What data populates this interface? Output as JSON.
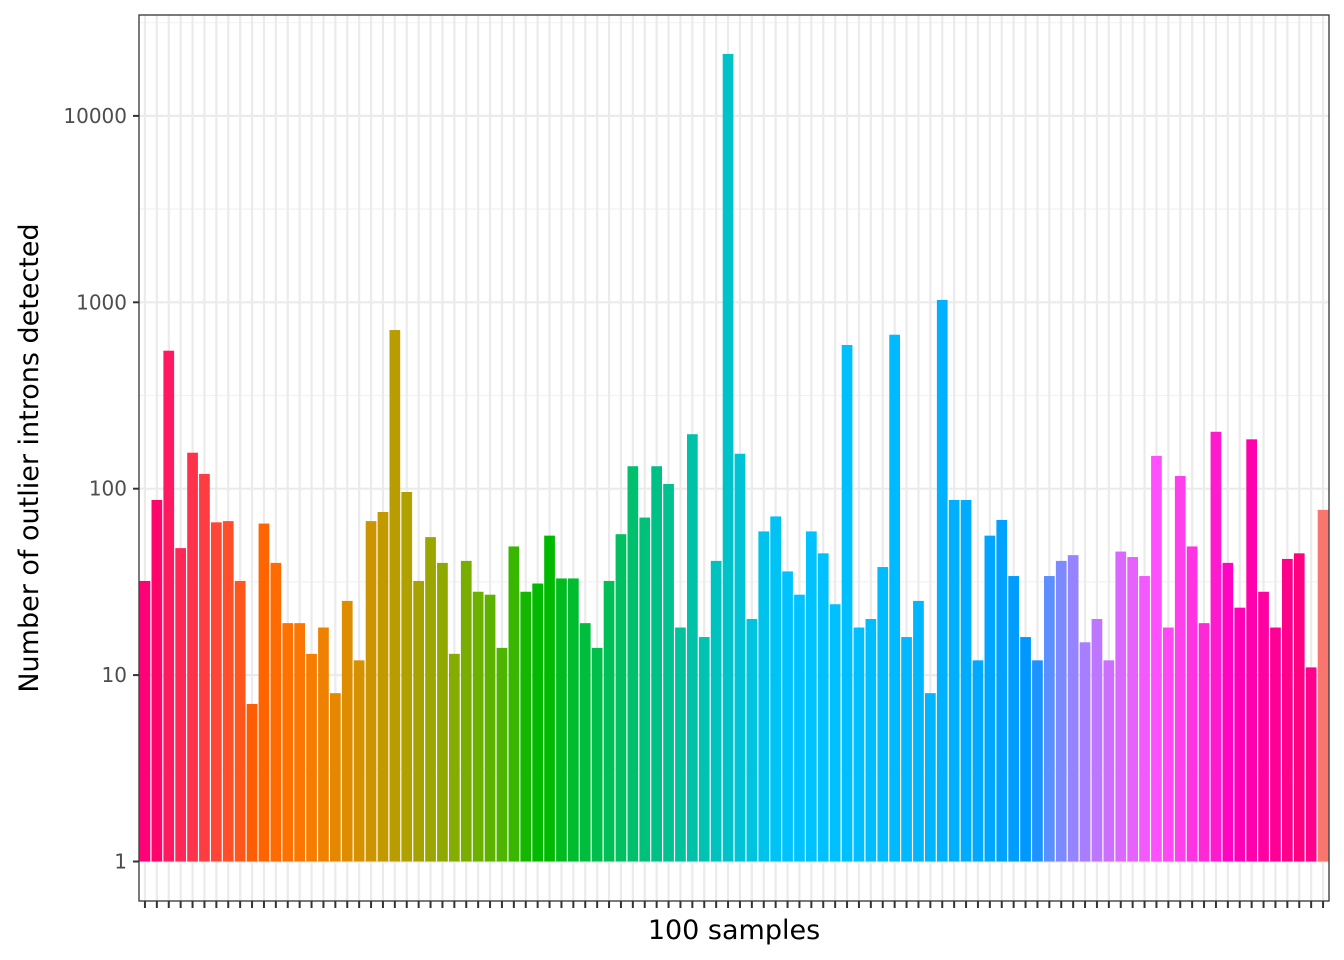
{
  "chart_data": {
    "type": "bar",
    "title": "",
    "xlabel": "100 samples",
    "ylabel": "Number of outlier introns detected",
    "y_scale": "log10",
    "ylim": [
      0.55,
      34000
    ],
    "y_ticks": [
      {
        "value": 1,
        "label": "1"
      },
      {
        "value": 10,
        "label": "10"
      },
      {
        "value": 100,
        "label": "100"
      },
      {
        "value": 1000,
        "label": "1000"
      },
      {
        "value": 10000,
        "label": "10000"
      }
    ],
    "x_tick_labels": "none",
    "grid": true,
    "legend": "none",
    "colors": "hue gradient from #F8766D through #00BFC4 to #FF61C3 and back",
    "values": [
      32,
      87,
      550,
      48,
      156,
      120,
      66,
      67,
      32,
      7,
      65,
      40,
      19,
      19,
      13,
      18,
      8,
      25,
      12,
      67,
      75,
      710,
      96,
      32,
      55,
      40,
      13,
      41,
      28,
      27,
      14,
      49,
      28,
      31,
      56,
      33,
      33,
      19,
      14,
      32,
      57,
      132,
      70,
      132,
      106,
      18,
      196,
      16,
      41,
      21500,
      154,
      20,
      59,
      71,
      36,
      27,
      59,
      45,
      24,
      590,
      18,
      20,
      38,
      670,
      16,
      25,
      8,
      1030,
      87,
      87,
      12,
      56,
      68,
      34,
      16,
      12,
      34,
      41,
      44,
      15,
      20,
      12,
      46,
      43,
      34,
      150,
      18,
      117,
      49,
      19,
      202,
      40,
      23,
      184,
      28,
      18,
      42,
      45,
      11,
      77
    ]
  }
}
